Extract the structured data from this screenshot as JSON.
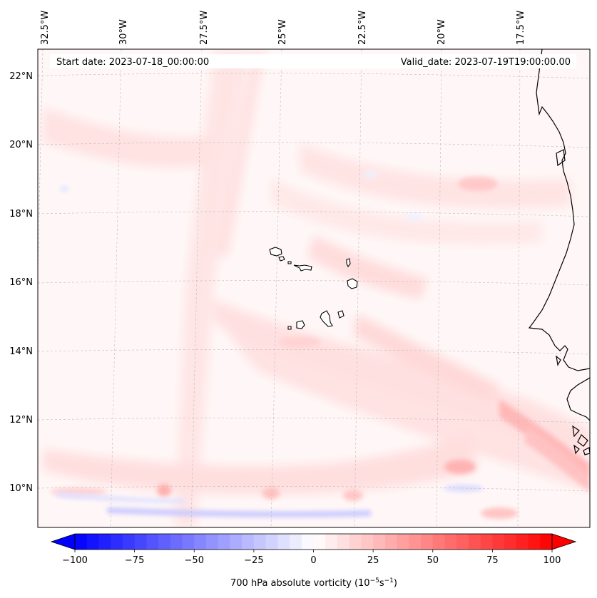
{
  "header": {
    "start_date": "Start date: 2023-07-18_00:00:00",
    "valid_date": "Valid_date: 2023-07-19T19:00:00.00"
  },
  "map": {
    "lon_labels": [
      "32.5°W",
      "30°W",
      "27.5°W",
      "25°W",
      "22.5°W",
      "20°W",
      "17.5°W"
    ],
    "lat_labels": [
      "22°N",
      "20°N",
      "18°N",
      "16°N",
      "14°N",
      "12°N",
      "10°N"
    ],
    "field": "700 hPa absolute vorticity",
    "extent_lon": [
      -32.5,
      -15.5
    ],
    "extent_lat": [
      8.9,
      22.8
    ]
  },
  "colorbar": {
    "ticks": [
      "−100",
      "−75",
      "−50",
      "−25",
      "0",
      "25",
      "50",
      "75",
      "100"
    ],
    "label": "700 hPa absolute vorticity (10",
    "label_exp1": "−5",
    "label_mid": "s",
    "label_exp2": "−1",
    "label_end": ")",
    "min": -100,
    "max": 100,
    "extend": "both",
    "colors": {
      "low": "#0000ff",
      "mid": "#ffffff",
      "high": "#ff0000"
    }
  }
}
